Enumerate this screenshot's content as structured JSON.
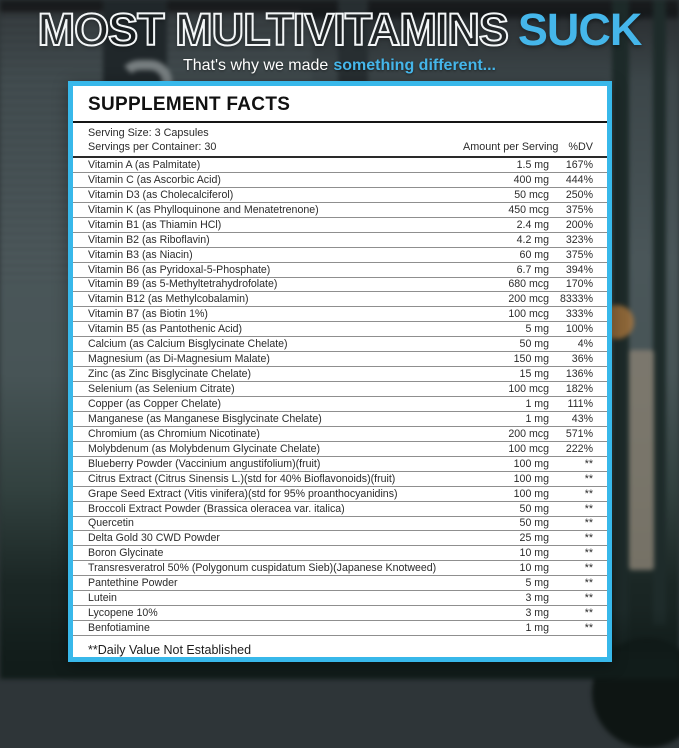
{
  "header": {
    "title_outline": "MOST MULTIVITAMINS",
    "title_accent": "SUCK",
    "subtitle_plain": "That's why we made",
    "subtitle_accent": "something different...",
    "accent_color": "#45b6ea"
  },
  "panel": {
    "title": "SUPPLEMENT FACTS",
    "serving_size": "Serving Size: 3 Capsules",
    "servings_per_container": "Servings per Container: 30",
    "col_amount": "Amount per Serving",
    "col_dv": "%DV",
    "footnote": "**Daily Value Not Established",
    "border_color": "#38b8ea",
    "rows": [
      {
        "label": "Vitamin A (as Palmitate)",
        "amount": "1.5 mg",
        "dv": "167%"
      },
      {
        "label": "Vitamin C (as Ascorbic Acid)",
        "amount": "400 mg",
        "dv": "444%"
      },
      {
        "label": "Vitamin D3 (as Cholecalciferol)",
        "amount": "50 mcg",
        "dv": "250%"
      },
      {
        "label": "Vitamin K (as Phylloquinone and Menatetrenone)",
        "amount": "450 mcg",
        "dv": "375%"
      },
      {
        "label": "Vitamin B1 (as Thiamin HCl)",
        "amount": "2.4 mg",
        "dv": "200%"
      },
      {
        "label": "Vitamin B2 (as Riboflavin)",
        "amount": "4.2 mg",
        "dv": "323%"
      },
      {
        "label": "Vitamin B3 (as Niacin)",
        "amount": "60 mg",
        "dv": "375%"
      },
      {
        "label": "Vitamin B6 (as Pyridoxal-5-Phosphate)",
        "amount": "6.7 mg",
        "dv": "394%"
      },
      {
        "label": "Vitamin B9 (as 5-Methyltetrahydrofolate)",
        "amount": "680 mcg",
        "dv": "170%"
      },
      {
        "label": "Vitamin B12 (as Methylcobalamin)",
        "amount": "200 mcg",
        "dv": "8333%"
      },
      {
        "label": "Vitamin B7 (as Biotin 1%)",
        "amount": "100 mcg",
        "dv": "333%"
      },
      {
        "label": "Vitamin B5 (as Pantothenic Acid)",
        "amount": "5 mg",
        "dv": "100%"
      },
      {
        "label": "Calcium (as Calcium Bisglycinate Chelate)",
        "amount": "50 mg",
        "dv": "4%"
      },
      {
        "label": "Magnesium (as Di-Magnesium Malate)",
        "amount": "150 mg",
        "dv": "36%"
      },
      {
        "label": "Zinc (as Zinc Bisglycinate Chelate)",
        "amount": "15 mg",
        "dv": "136%"
      },
      {
        "label": "Selenium (as Selenium Citrate)",
        "amount": "100 mcg",
        "dv": "182%"
      },
      {
        "label": "Copper (as Copper Chelate)",
        "amount": "1 mg",
        "dv": "111%"
      },
      {
        "label": "Manganese (as Manganese Bisglycinate Chelate)",
        "amount": "1 mg",
        "dv": "43%"
      },
      {
        "label": "Chromium (as Chromium Nicotinate)",
        "amount": "200 mcg",
        "dv": "571%"
      },
      {
        "label": "Molybdenum (as Molybdenum Glycinate Chelate)",
        "amount": "100 mcg",
        "dv": "222%"
      },
      {
        "label": "Blueberry Powder (Vaccinium angustifolium)(fruit)",
        "amount": "100 mg",
        "dv": "**"
      },
      {
        "label": "Citrus Extract (Citrus Sinensis L.)(std for 40% Bioflavonoids)(fruit)",
        "amount": "100 mg",
        "dv": "**"
      },
      {
        "label": "Grape Seed Extract (Vitis vinifera)(std for 95% proanthocyanidins)",
        "amount": "100 mg",
        "dv": "**"
      },
      {
        "label": "Broccoli Extract Powder (Brassica oleracea var. italica)",
        "amount": "50 mg",
        "dv": "**"
      },
      {
        "label": "Quercetin",
        "amount": "50 mg",
        "dv": "**"
      },
      {
        "label": "Delta Gold 30 CWD Powder",
        "amount": "25 mg",
        "dv": "**"
      },
      {
        "label": "Boron Glycinate",
        "amount": "10 mg",
        "dv": "**"
      },
      {
        "label": "Transresveratrol 50% (Polygonum cuspidatum Sieb)(Japanese Knotweed)",
        "amount": "10 mg",
        "dv": "**"
      },
      {
        "label": "Pantethine Powder",
        "amount": "5 mg",
        "dv": "**"
      },
      {
        "label": "Lutein",
        "amount": "3 mg",
        "dv": "**"
      },
      {
        "label": "Lycopene 10%",
        "amount": "3 mg",
        "dv": "**"
      },
      {
        "label": "Benfotiamine",
        "amount": "1 mg",
        "dv": "**"
      }
    ]
  }
}
